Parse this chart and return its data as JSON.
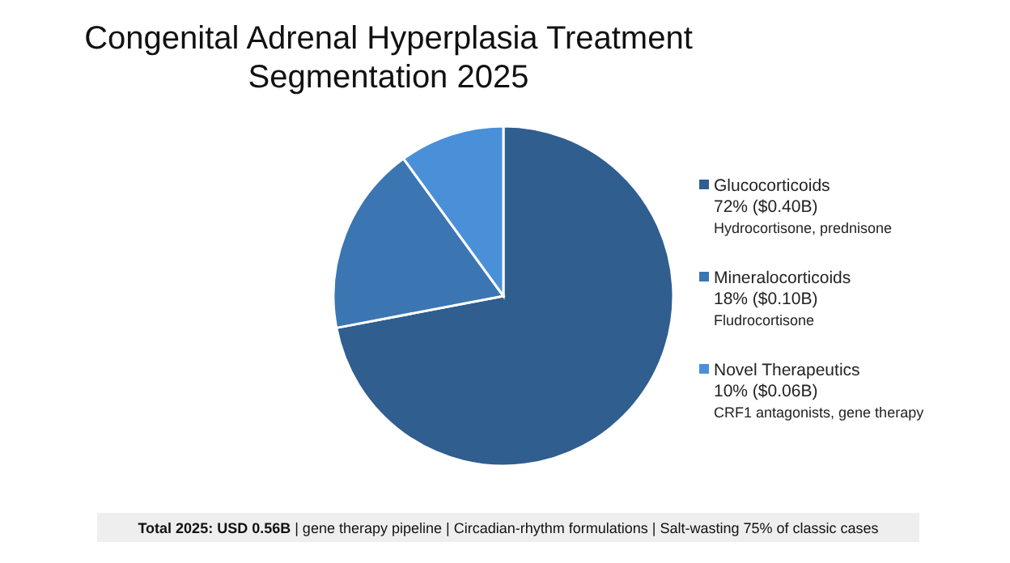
{
  "chart_data": {
    "type": "pie",
    "title": "Congenital Adrenal Hyperplasia Treatment Segmentation 2025",
    "categories": [
      "Glucocorticoids",
      "Mineralocorticoids",
      "Novel Therapeutics"
    ],
    "values": [
      72,
      18,
      10
    ],
    "value_labels": [
      "72% ($0.40B)",
      "18% ($0.10B)",
      "10% ($0.06B)"
    ],
    "colors": [
      "#2f5e8f",
      "#3b76b3",
      "#4a90d9"
    ],
    "legend": "right",
    "annotations": [
      "Hydrocortisone, prednisone",
      "Fludrocortisone",
      "CRF1 antagonists, gene therapy",
      "Total 2025: USD 0.56B | gene therapy pipeline | Circadian-rhythm formulations | Salt-wasting 75% of classic cases"
    ]
  }
}
